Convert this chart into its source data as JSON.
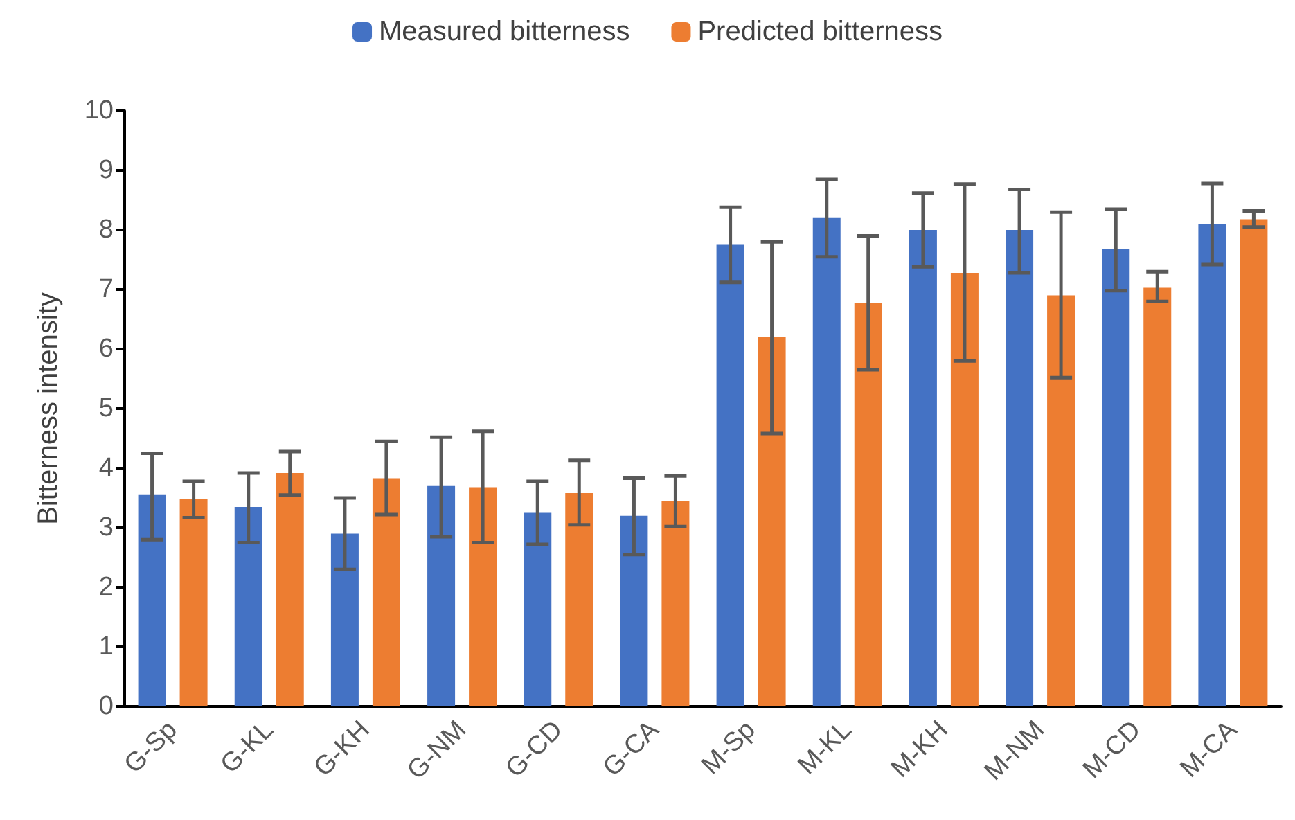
{
  "chart_data": {
    "type": "bar",
    "ylabel": "Bitterness intensity",
    "categories": [
      "G-Sp",
      "G-KL",
      "G-KH",
      "G-NM",
      "G-CD",
      "G-CA",
      "M-Sp",
      "M-KL",
      "M-KH",
      "M-NM",
      "M-CD",
      "M-CA"
    ],
    "series": [
      {
        "name": "Measured bitterness",
        "color": "#4472c4",
        "values": [
          3.55,
          3.35,
          2.9,
          3.7,
          3.25,
          3.2,
          7.75,
          8.2,
          8.0,
          8.0,
          7.68,
          8.1
        ],
        "errors": [
          [
            2.8,
            4.25
          ],
          [
            2.75,
            3.92
          ],
          [
            2.3,
            3.5
          ],
          [
            2.85,
            4.52
          ],
          [
            2.72,
            3.78
          ],
          [
            2.55,
            3.83
          ],
          [
            7.12,
            8.38
          ],
          [
            7.55,
            8.85
          ],
          [
            7.38,
            8.62
          ],
          [
            7.28,
            8.68
          ],
          [
            6.98,
            8.35
          ],
          [
            7.42,
            8.78
          ]
        ]
      },
      {
        "name": "Predicted bitterness",
        "color": "#ed7d31",
        "values": [
          3.48,
          3.92,
          3.83,
          3.68,
          3.58,
          3.45,
          6.2,
          6.77,
          7.28,
          6.9,
          7.03,
          8.18
        ],
        "errors": [
          [
            3.17,
            3.78
          ],
          [
            3.55,
            4.28
          ],
          [
            3.22,
            4.45
          ],
          [
            2.75,
            4.62
          ],
          [
            3.05,
            4.13
          ],
          [
            3.02,
            3.87
          ],
          [
            4.58,
            7.8
          ],
          [
            5.65,
            7.9
          ],
          [
            5.8,
            8.77
          ],
          [
            5.52,
            8.3
          ],
          [
            6.8,
            7.3
          ],
          [
            8.05,
            8.32
          ]
        ]
      }
    ],
    "ylim": [
      0,
      10
    ],
    "yticks": [
      0,
      1,
      2,
      3,
      4,
      5,
      6,
      7,
      8,
      9,
      10
    ],
    "grid": false,
    "legend": "top"
  }
}
